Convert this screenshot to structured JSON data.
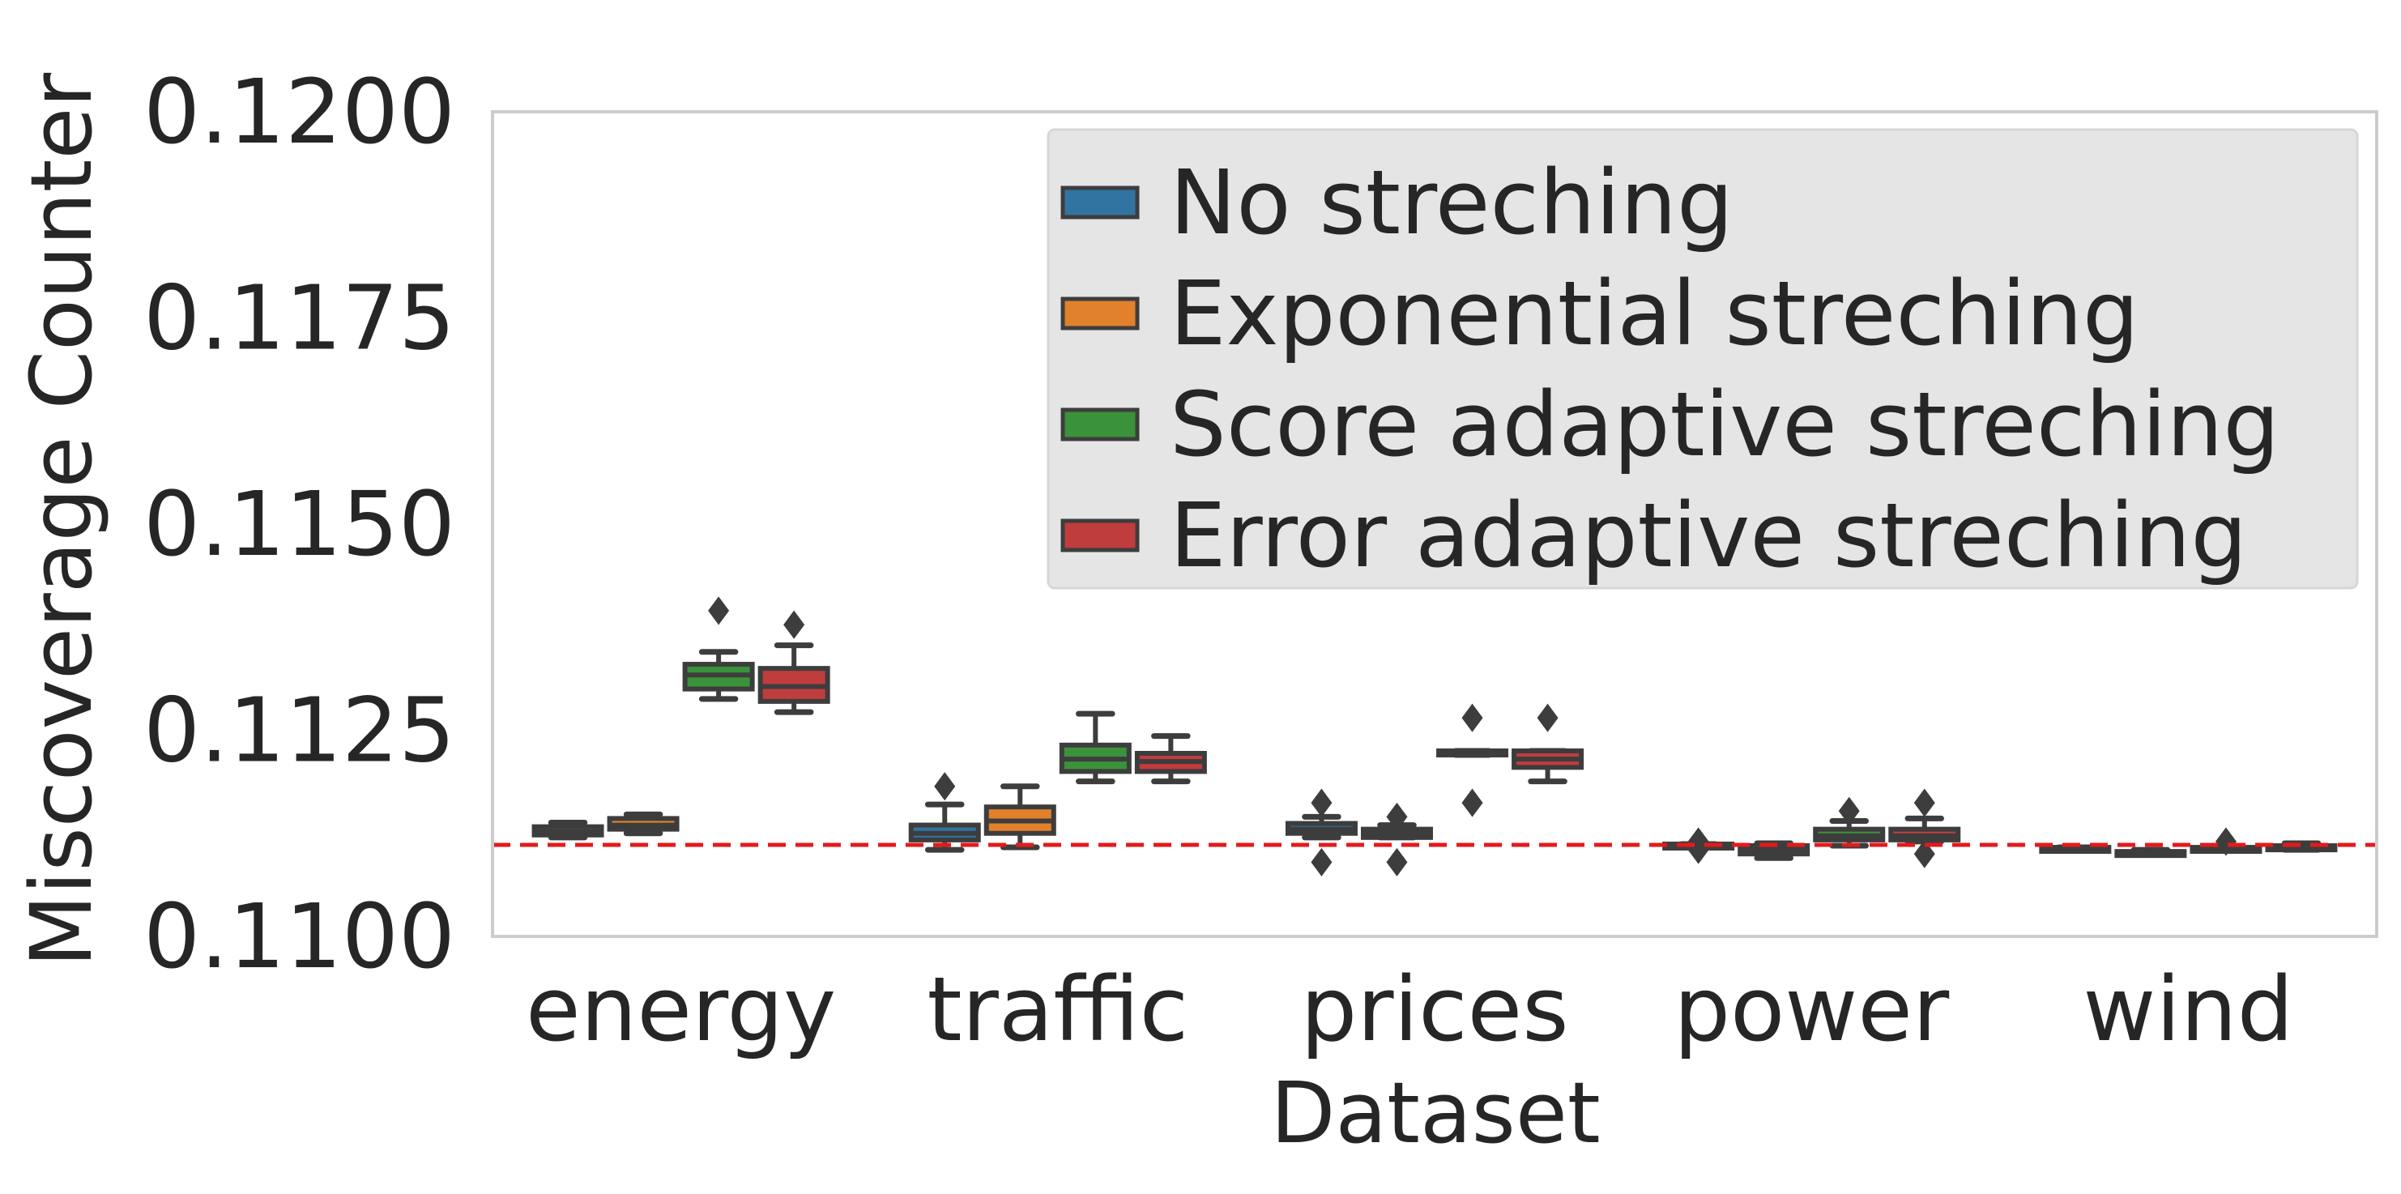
{
  "chart_data": {
    "type": "box",
    "xlabel": "Dataset",
    "ylabel": "Miscoverage Counter",
    "ylim": [
      0.11,
      0.12
    ],
    "yticks": [
      "0.1100",
      "0.1125",
      "0.1150",
      "0.1175",
      "0.1200"
    ],
    "categories": [
      "energy",
      "traffic",
      "prices",
      "power",
      "wind"
    ],
    "reference_line": {
      "value": 0.11111,
      "color": "#e41a1c",
      "style": "dashed"
    },
    "legend_position": "upper-right",
    "series": [
      {
        "name": "No streching",
        "color": "#3274a1",
        "boxes": [
          {
            "whislo": 0.1112,
            "q1": 0.11123,
            "med": 0.11127,
            "q3": 0.11133,
            "whishi": 0.11138,
            "fliers": []
          },
          {
            "whislo": 0.11105,
            "q1": 0.11117,
            "med": 0.11125,
            "q3": 0.11135,
            "whishi": 0.1116,
            "fliers": [
              0.11182
            ]
          },
          {
            "whislo": 0.1112,
            "q1": 0.11125,
            "med": 0.1113,
            "q3": 0.11137,
            "whishi": 0.11145,
            "fliers": [
              0.1109,
              0.11162
            ]
          },
          {
            "whislo": 0.11108,
            "q1": 0.11108,
            "med": 0.1111,
            "q3": 0.11112,
            "whishi": 0.11112,
            "fliers": [
              0.11105,
              0.11115
            ]
          },
          {
            "whislo": 0.11105,
            "q1": 0.11105,
            "med": 0.11107,
            "q3": 0.11108,
            "whishi": 0.11108,
            "fliers": []
          }
        ]
      },
      {
        "name": "Exponential streching",
        "color": "#e1812c",
        "boxes": [
          {
            "whislo": 0.11125,
            "q1": 0.1113,
            "med": 0.11135,
            "q3": 0.11143,
            "whishi": 0.11148,
            "fliers": []
          },
          {
            "whislo": 0.11108,
            "q1": 0.11125,
            "med": 0.1114,
            "q3": 0.11157,
            "whishi": 0.11182,
            "fliers": []
          },
          {
            "whislo": 0.1112,
            "q1": 0.1112,
            "med": 0.11125,
            "q3": 0.1113,
            "whishi": 0.11135,
            "fliers": [
              0.1109,
              0.11145
            ]
          },
          {
            "whislo": 0.11095,
            "q1": 0.111,
            "med": 0.11105,
            "q3": 0.1111,
            "whishi": 0.11113,
            "fliers": []
          },
          {
            "whislo": 0.111,
            "q1": 0.111,
            "med": 0.111,
            "q3": 0.11103,
            "whishi": 0.11105,
            "fliers": []
          }
        ]
      },
      {
        "name": "Score adaptive streching",
        "color": "#3a923a",
        "boxes": [
          {
            "whislo": 0.11288,
            "q1": 0.113,
            "med": 0.11317,
            "q3": 0.1133,
            "whishi": 0.11345,
            "fliers": [
              0.11395
            ]
          },
          {
            "whislo": 0.11188,
            "q1": 0.112,
            "med": 0.11215,
            "q3": 0.11232,
            "whishi": 0.1127,
            "fliers": []
          },
          {
            "whislo": 0.1122,
            "q1": 0.1122,
            "med": 0.11223,
            "q3": 0.11225,
            "whishi": 0.11225,
            "fliers": [
              0.11162,
              0.11265
            ]
          },
          {
            "whislo": 0.1111,
            "q1": 0.11117,
            "med": 0.11122,
            "q3": 0.1113,
            "whishi": 0.1114,
            "fliers": [
              0.11152
            ]
          },
          {
            "whislo": 0.11105,
            "q1": 0.11105,
            "med": 0.11107,
            "q3": 0.11108,
            "whishi": 0.1111,
            "fliers": [
              0.11115
            ]
          }
        ]
      },
      {
        "name": "Error adaptive streching",
        "color": "#c03d3e",
        "boxes": [
          {
            "whislo": 0.11272,
            "q1": 0.11285,
            "med": 0.11303,
            "q3": 0.11325,
            "whishi": 0.11353,
            "fliers": [
              0.11378
            ]
          },
          {
            "whislo": 0.11188,
            "q1": 0.112,
            "med": 0.11212,
            "q3": 0.11222,
            "whishi": 0.11243,
            "fliers": []
          },
          {
            "whislo": 0.11188,
            "q1": 0.11205,
            "med": 0.11215,
            "q3": 0.11225,
            "whishi": 0.11225,
            "fliers": [
              0.11265
            ]
          },
          {
            "whislo": 0.11115,
            "q1": 0.11117,
            "med": 0.11122,
            "q3": 0.1113,
            "whishi": 0.11143,
            "fliers": [
              0.111,
              0.11162
            ]
          },
          {
            "whislo": 0.11105,
            "q1": 0.11105,
            "med": 0.11107,
            "q3": 0.1111,
            "whishi": 0.11113,
            "fliers": []
          }
        ]
      }
    ]
  }
}
